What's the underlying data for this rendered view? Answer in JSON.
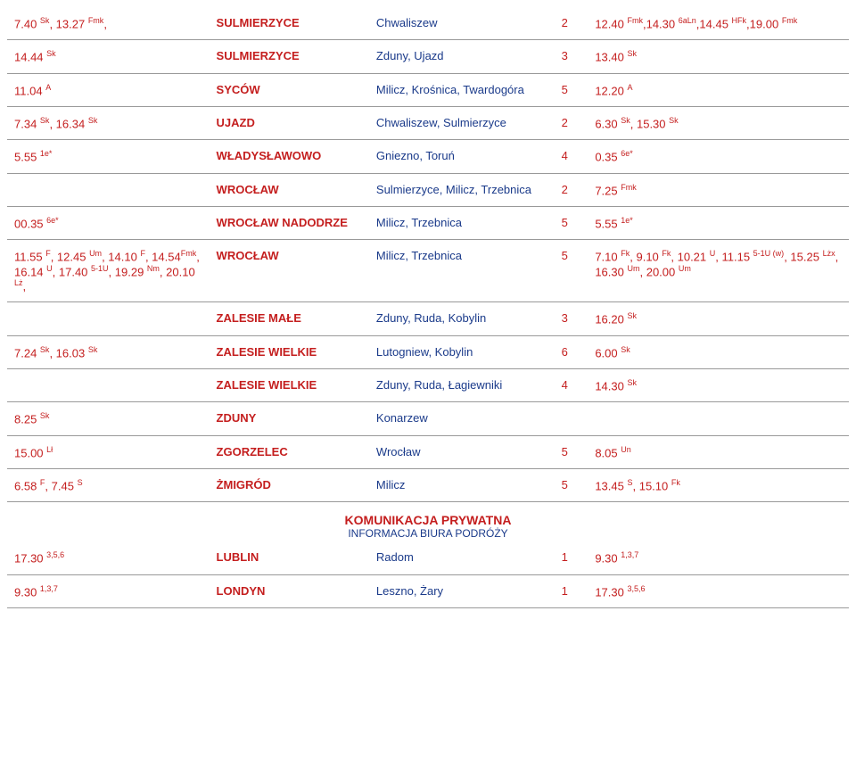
{
  "rows": [
    {
      "c1": "7.40 <span class='sup'>Sk</span>, 13.27 <span class='sup'>Fmk</span>,",
      "c2": "SULMIERZYCE",
      "c3": "Chwaliszew",
      "c4": "2",
      "c5": "12.40 <span class='sup'>Fmk</span>,14.30 <span class='sup'>6aLn</span>,14.45 <span class='sup'>HFk</span>,19.00 <span class='sup'>Fmk</span>"
    },
    {
      "c1": "14.44 <span class='sup'>Sk</span>",
      "c2": "SULMIERZYCE",
      "c3": "Zduny, Ujazd",
      "c4": "3",
      "c5": "13.40 <span class='sup'>Sk</span>"
    },
    {
      "c1": "11.04 <span class='sup'>A</span>",
      "c2": "SYCÓW",
      "c3": "Milicz, Krośnica, Twardogóra",
      "c4": "5",
      "c5": "12.20 <span class='sup'>A</span>"
    },
    {
      "c1": "7.34 <span class='sup'>Sk</span>, 16.34 <span class='sup'>Sk</span>",
      "c2": "UJAZD",
      "c3": "Chwaliszew, Sulmierzyce",
      "c4": "2",
      "c5": "6.30 <span class='sup'>Sk</span>, 15.30 <span class='sup'>Sk</span>"
    },
    {
      "c1": "5.55 <span class='sup'>1e*</span>",
      "c2": "WŁADYSŁAWOWO",
      "c3": "Gniezno, Toruń",
      "c4": "4",
      "c5": "0.35 <span class='sup'>6e*</span>"
    },
    {
      "c1": "",
      "c2": "WROCŁAW",
      "c3": "Sulmierzyce, Milicz, Trzebnica",
      "c4": "2",
      "c5": "7.25 <span class='sup'>Fmk</span>"
    },
    {
      "c1": "00.35 <span class='sup'>6e*</span>",
      "c2": "WROCŁAW NADODRZE",
      "c3": "Milicz, Trzebnica",
      "c4": "5",
      "c5": "5.55 <span class='sup'>1e*</span>"
    },
    {
      "c1": "11.55 <span class='sup'>F</span>, 12.45 <span class='sup'>Um</span>, 14.10 <span class='sup'>F</span>, 14.54<span class='sup'>Fmk</span>, 16.14 <span class='sup'>U</span>, 17.40 <span class='sup'>5-1U</span>, 19.29 <span class='sup'>Nm</span>, 20.10 <span class='sup'>Lż</span>,",
      "c2": "WROCŁAW",
      "c3": "Milicz, Trzebnica",
      "c4": "5",
      "c5": "7.10 <span class='sup'>Fk</span>, 9.10 <span class='sup'>Fk</span>, 10.21 <span class='sup'>U</span>, 11.15 <span class='sup'>5-1U (w)</span>, 15.25 <span class='sup'>Lżx</span>, 16.30 <span class='sup'>Um</span>, 20.00 <span class='sup'>Um</span>"
    },
    {
      "c1": "",
      "c2": "ZALESIE MAŁE",
      "c3": "Zduny, Ruda, Kobylin",
      "c4": "3",
      "c5": "16.20 <span class='sup'>Sk</span>"
    },
    {
      "c1": "7.24 <span class='sup'>Sk</span>, 16.03 <span class='sup'>Sk</span>",
      "c2": "ZALESIE WIELKIE",
      "c3": "Lutogniew, Kobylin",
      "c4": "6",
      "c5": "6.00 <span class='sup'>Sk</span>"
    },
    {
      "c1": "",
      "c2": "ZALESIE WIELKIE",
      "c3": "Zduny, Ruda, Łagiewniki",
      "c4": "4",
      "c5": "14.30 <span class='sup'>Sk</span>"
    },
    {
      "c1": "8.25 <span class='sup'>Sk</span>",
      "c2": "ZDUNY",
      "c3": "Konarzew",
      "c4": "",
      "c5": ""
    },
    {
      "c1": "15.00 <span class='sup'>Lł</span>",
      "c2": "ZGORZELEC",
      "c3": "Wrocław",
      "c4": "5",
      "c5": "8.05 <span class='sup'>Un</span>"
    },
    {
      "c1": "6.58 <span class='sup'>F</span>, 7.45 <span class='sup'>S</span>",
      "c2": "ŻMIGRÓD",
      "c3": "Milicz",
      "c4": "5",
      "c5": "13.45 <span class='sup'>S</span>, 15.10 <span class='sup'>Fk</span>"
    }
  ],
  "section": {
    "line1": "KOMUNIKACJA PRYWATNA",
    "line2": "INFORMACJA BIURA PODRÓŻY"
  },
  "rows2": [
    {
      "c1": "17.30 <span class='sup'>3,5,6</span>",
      "c2": "LUBLIN",
      "c3": "Radom",
      "c4": "1",
      "c5": "9.30 <span class='sup'>1,3,7</span>"
    },
    {
      "c1": "9.30 <span class='sup'>1,3,7</span>",
      "c2": "LONDYN",
      "c3": "Leszno, Żary",
      "c4": "1",
      "c5": "17.30 <span class='sup'>3,5,6</span>"
    }
  ]
}
